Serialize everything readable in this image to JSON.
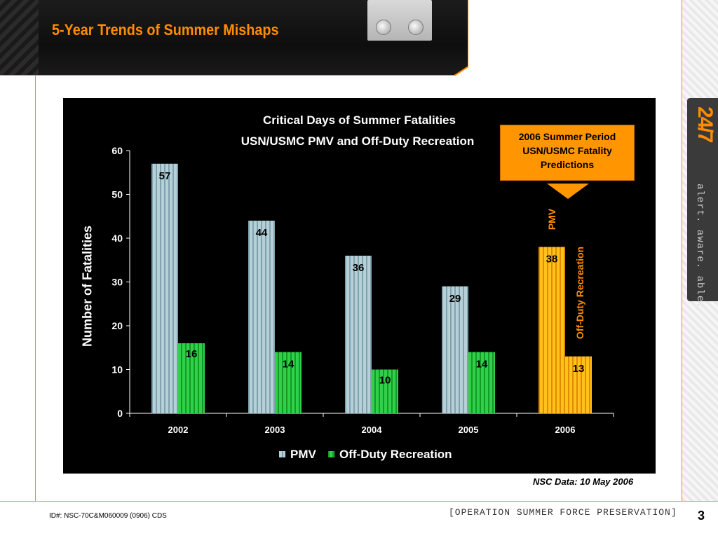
{
  "header": {
    "title": "5-Year Trends of Summer Mishaps"
  },
  "side_panel": {
    "logo": "24/7",
    "slogan": "alert. aware. able."
  },
  "callout": {
    "line1": "2006 Summer Period",
    "line2": "USN/USMC Fatality",
    "line3": "Predictions",
    "pmv_label": "PMV",
    "odr_label": "Off-Duty Recreation"
  },
  "chart_data": {
    "type": "bar",
    "title": "Critical Days of Summer Fatalities",
    "subtitle": "USN/USMC PMV and Off-Duty Recreation",
    "xlabel": "",
    "ylabel": "Number of Fatalities",
    "ylim": [
      0,
      60
    ],
    "yticks": [
      0,
      10,
      20,
      30,
      40,
      50,
      60
    ],
    "categories": [
      "2002",
      "2003",
      "2004",
      "2005",
      "2006"
    ],
    "series": [
      {
        "name": "PMV",
        "values": [
          57,
          44,
          36,
          29,
          38
        ]
      },
      {
        "name": "Off-Duty Recreation",
        "values": [
          16,
          14,
          10,
          14,
          13
        ]
      }
    ],
    "legend": "bottom",
    "grid": false,
    "colors": {
      "pmv": "#a9c6cf",
      "odr": "#2ecc40",
      "prediction": "#ffb400"
    }
  },
  "source_note": "NSC Data: 10 May 2006",
  "footer": {
    "id": "ID#: NSC-70C&M060009 (0906) CDS",
    "operation": "[OPERATION SUMMER FORCE PRESERVATION]",
    "page": "3"
  }
}
